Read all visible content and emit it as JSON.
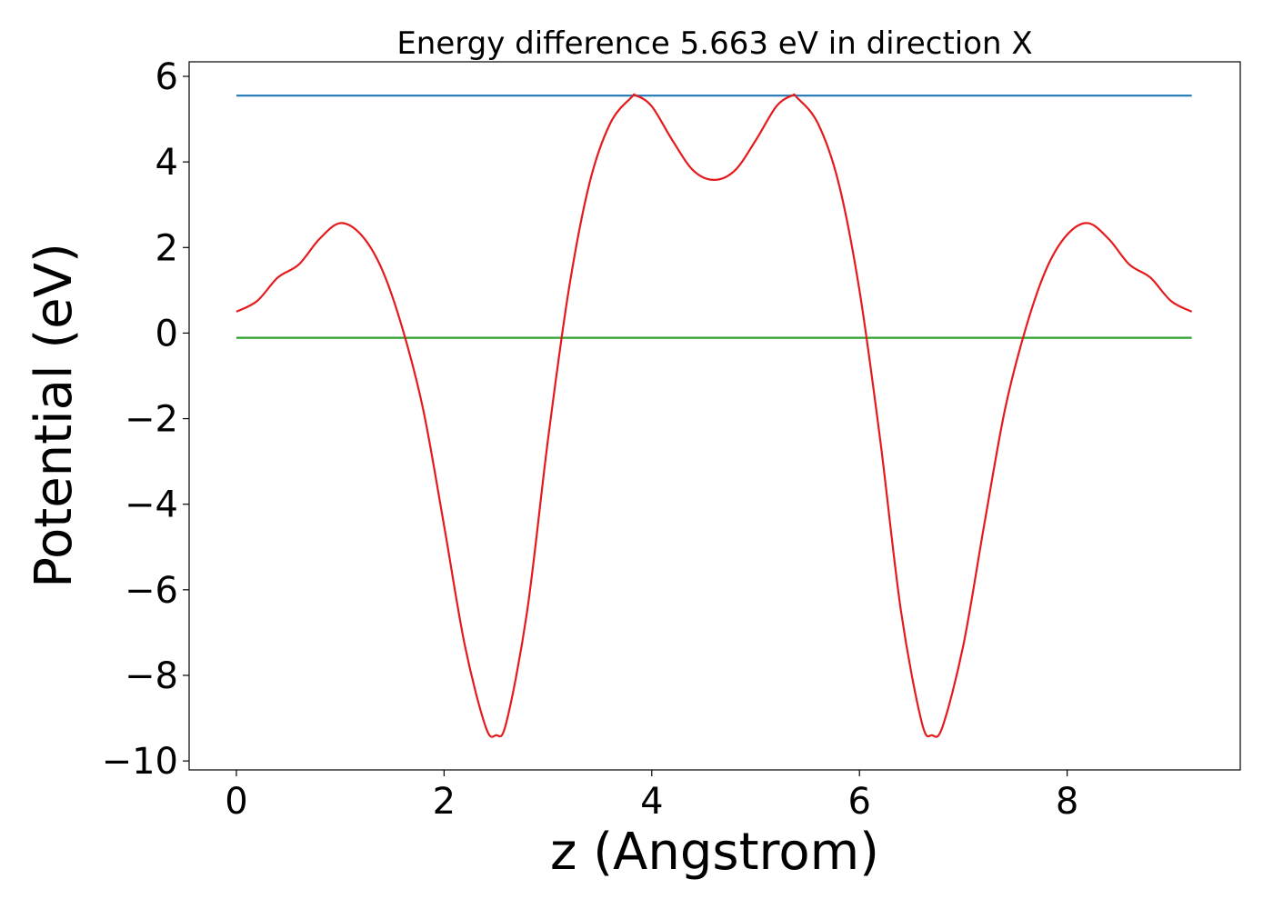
{
  "chart_data": {
    "type": "line",
    "title": "Energy difference 5.663 eV in direction X",
    "xlabel": "z (Angstrom)",
    "ylabel": "Potential (eV)",
    "xlim": [
      -0.455,
      9.667
    ],
    "ylim": [
      -10.21,
      6.34
    ],
    "xticks": [
      0,
      2,
      4,
      6,
      8
    ],
    "yticks": [
      {
        "value": -10,
        "label": "−10"
      },
      {
        "value": -8,
        "label": "−8"
      },
      {
        "value": -6,
        "label": "−6"
      },
      {
        "value": -4,
        "label": "−4"
      },
      {
        "value": -2,
        "label": "−2"
      },
      0,
      2,
      4,
      6
    ],
    "grid": false,
    "series": [
      {
        "color": "#1f77b4",
        "x": [
          0,
          9.2
        ],
        "values": [
          5.55,
          5.55
        ]
      },
      {
        "color": "#2ca02c",
        "x": [
          0,
          9.2
        ],
        "values": [
          -0.11,
          -0.11
        ]
      },
      {
        "color": "#e41a1c",
        "x": [
          0,
          0.2,
          0.4,
          0.6,
          0.8,
          1.0,
          1.2,
          1.4,
          1.6,
          1.8,
          2.0,
          2.2,
          2.4,
          2.5,
          2.6,
          2.8,
          3.0,
          3.2,
          3.4,
          3.6,
          3.8,
          3.85,
          4.0,
          4.2,
          4.4,
          4.6,
          4.8,
          5.0,
          5.2,
          5.35,
          5.4,
          5.6,
          5.8,
          6.0,
          6.2,
          6.4,
          6.6,
          6.7,
          6.8,
          7.0,
          7.2,
          7.4,
          7.6,
          7.8,
          8.0,
          8.2,
          8.4,
          8.6,
          8.8,
          9.0,
          9.2
        ],
        "values": [
          0.5,
          0.75,
          1.3,
          1.6,
          2.2,
          2.57,
          2.3,
          1.5,
          0.1,
          -1.8,
          -4.5,
          -7.3,
          -9.2,
          -9.4,
          -9.1,
          -6.5,
          -2.5,
          1.0,
          3.5,
          4.9,
          5.5,
          5.55,
          5.3,
          4.5,
          3.8,
          3.58,
          3.8,
          4.5,
          5.3,
          5.55,
          5.5,
          4.9,
          3.5,
          1.0,
          -2.5,
          -6.5,
          -9.1,
          -9.4,
          -9.2,
          -7.3,
          -4.5,
          -1.8,
          0.1,
          1.5,
          2.3,
          2.57,
          2.2,
          1.6,
          1.3,
          0.75,
          0.5
        ]
      }
    ]
  }
}
